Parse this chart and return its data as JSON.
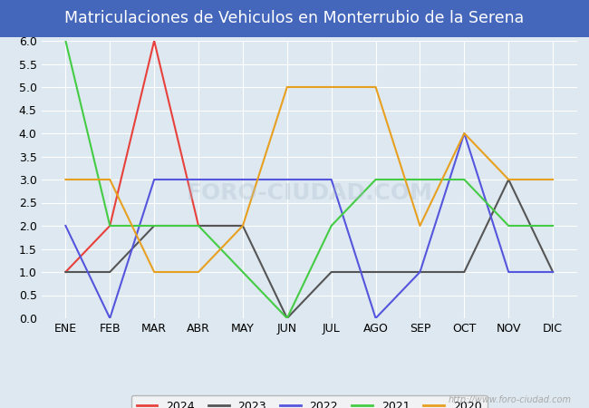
{
  "title": "Matriculaciones de Vehiculos en Monterrubio de la Serena",
  "months": [
    "ENE",
    "FEB",
    "MAR",
    "ABR",
    "MAY",
    "JUN",
    "JUL",
    "AGO",
    "SEP",
    "OCT",
    "NOV",
    "DIC"
  ],
  "series": {
    "2024": {
      "values": [
        1,
        2,
        6,
        2,
        2,
        null,
        null,
        null,
        null,
        null,
        null,
        null
      ],
      "color": "#e8413c",
      "linewidth": 1.5
    },
    "2023": {
      "values": [
        1,
        1,
        2,
        2,
        2,
        0,
        1,
        1,
        1,
        1,
        3,
        1
      ],
      "color": "#555555",
      "linewidth": 1.5
    },
    "2022": {
      "values": [
        2,
        0,
        3,
        3,
        3,
        3,
        3,
        0,
        1,
        4,
        1,
        1
      ],
      "color": "#5555dd",
      "linewidth": 1.5
    },
    "2021": {
      "values": [
        6,
        2,
        2,
        2,
        1,
        0,
        2,
        3,
        3,
        3,
        2,
        2
      ],
      "color": "#44cc44",
      "linewidth": 1.5
    },
    "2020": {
      "values": [
        3,
        3,
        1,
        1,
        2,
        5,
        5,
        5,
        2,
        4,
        3,
        3
      ],
      "color": "#e8a020",
      "linewidth": 1.5
    }
  },
  "ylim": [
    0,
    6.0
  ],
  "yticks": [
    0.0,
    0.5,
    1.0,
    1.5,
    2.0,
    2.5,
    3.0,
    3.5,
    4.0,
    4.5,
    5.0,
    5.5,
    6.0
  ],
  "background_color": "#dde8f0",
  "plot_bg_color": "#dde8f0",
  "title_bg_color": "#4466bb",
  "title_color": "#ffffff",
  "title_fontsize": 12.5,
  "watermark": "http://www.foro-ciudad.com",
  "watermark_color": "#aaaaaa",
  "grid_color": "#ffffff",
  "legend_order": [
    "2024",
    "2023",
    "2022",
    "2021",
    "2020"
  ],
  "legend_facecolor": "#f5f5f5",
  "legend_edgecolor": "#aaaaaa"
}
